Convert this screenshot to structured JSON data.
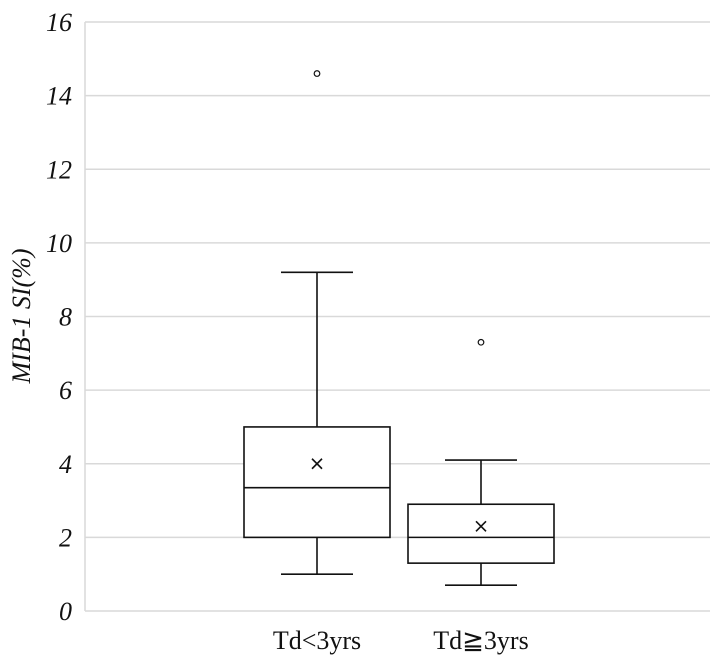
{
  "chart_data": {
    "type": "box",
    "ylabel": "MIB-1 SI(%)",
    "xlabel": "",
    "ylim": [
      0,
      16
    ],
    "yticks": [
      0,
      2,
      4,
      6,
      8,
      10,
      12,
      14,
      16
    ],
    "grid": true,
    "categories": [
      "Td<3yrs",
      "Td≧3yrs"
    ],
    "boxes": [
      {
        "category": "Td<3yrs",
        "min": 1.0,
        "q1": 2.0,
        "median": 3.35,
        "q3": 5.0,
        "max": 9.2,
        "mean": 4.0,
        "outliers": [
          14.6
        ]
      },
      {
        "category": "Td≧3yrs",
        "min": 0.7,
        "q1": 1.3,
        "median": 2.0,
        "q3": 2.9,
        "max": 4.1,
        "mean": 2.3,
        "outliers": [
          7.3
        ]
      }
    ],
    "colors": {
      "grid": "#d9d9d9",
      "line": "#111111",
      "background": "#ffffff"
    }
  }
}
